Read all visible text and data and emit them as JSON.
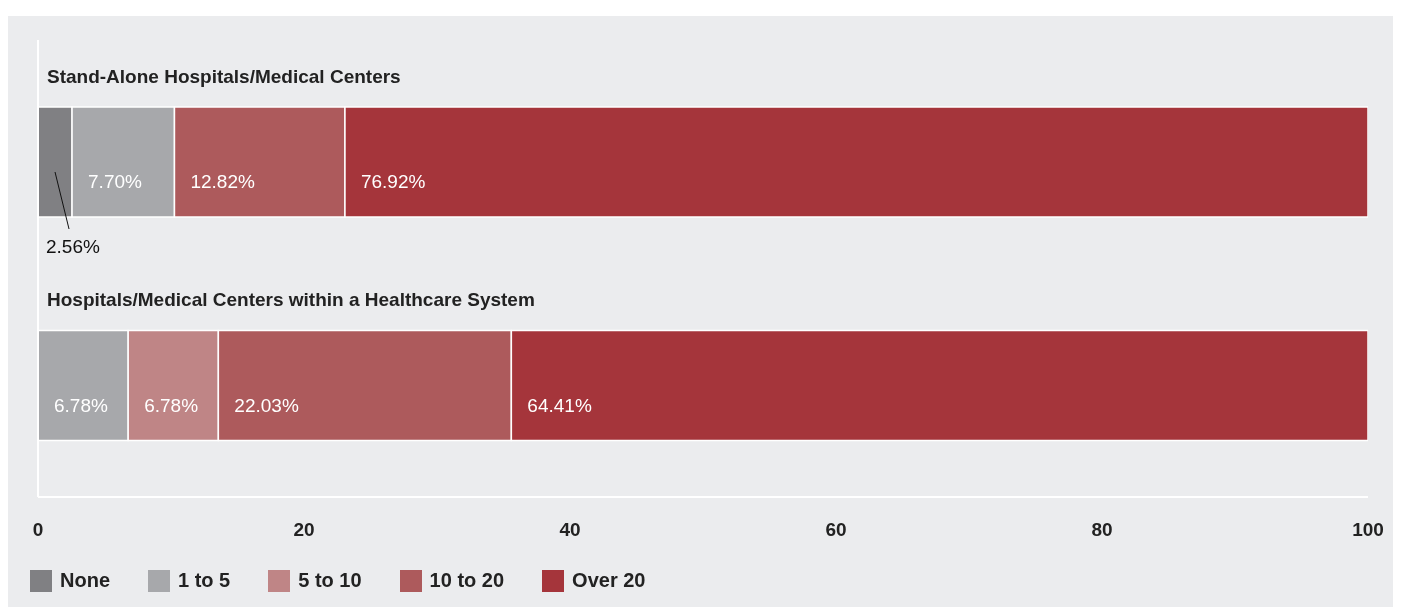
{
  "chart_data": {
    "type": "bar",
    "orientation": "horizontal",
    "stacked": true,
    "categories": [
      "Stand-Alone Hospitals/Medical Centers",
      "Hospitals/Medical Centers within a Healthcare System"
    ],
    "series": [
      {
        "name": "None",
        "color": "#808083",
        "values": [
          2.56,
          null
        ],
        "value_labels": [
          "2.56%",
          null
        ]
      },
      {
        "name": "1 to 5",
        "color": "#a7a8ab",
        "values": [
          7.7,
          6.78
        ],
        "value_labels": [
          "7.70%",
          "6.78%"
        ]
      },
      {
        "name": "5 to 10",
        "color": "#bf8586",
        "values": [
          null,
          6.78
        ],
        "value_labels": [
          null,
          "6.78%"
        ]
      },
      {
        "name": "10 to 20",
        "color": "#ad5a5c",
        "values": [
          12.82,
          22.03
        ],
        "value_labels": [
          "12.82%",
          "22.03%"
        ]
      },
      {
        "name": "Over 20",
        "color": "#a5353b",
        "values": [
          76.92,
          64.41
        ],
        "value_labels": [
          "76.92%",
          "64.41%"
        ]
      }
    ],
    "xlim": [
      0,
      100
    ],
    "xticks": [
      0,
      20,
      40,
      60,
      80,
      100
    ],
    "grid": false,
    "legend": "bottom left"
  }
}
